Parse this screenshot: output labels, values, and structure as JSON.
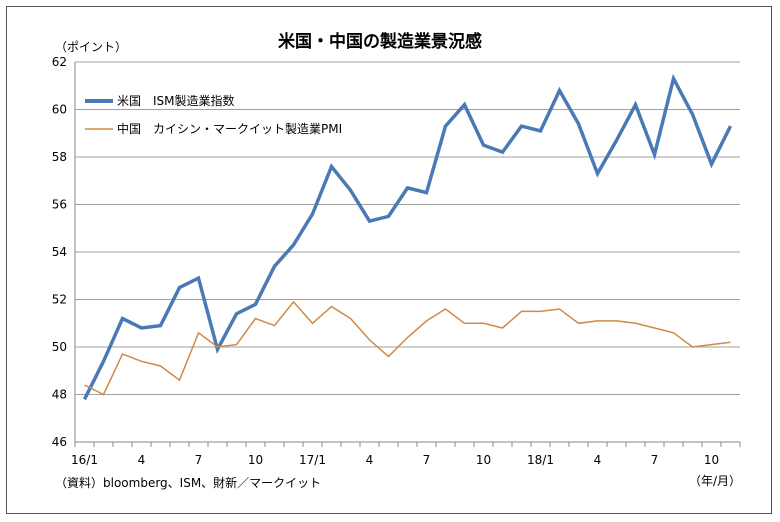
{
  "chart_data": {
    "type": "line",
    "title": "米国・中国の製造業景況感",
    "ylabel": "（ポイント）",
    "xlabel": "（年/月）",
    "source": "（資料）bloomberg、ISM、財新／マークイット",
    "ylim": [
      46,
      62
    ],
    "yticks": [
      46,
      48,
      50,
      52,
      54,
      56,
      58,
      60,
      62
    ],
    "x_tick_labels": [
      {
        "index": 0,
        "label": "16/1"
      },
      {
        "index": 3,
        "label": "4"
      },
      {
        "index": 6,
        "label": "7"
      },
      {
        "index": 9,
        "label": "10"
      },
      {
        "index": 12,
        "label": "17/1"
      },
      {
        "index": 15,
        "label": "4"
      },
      {
        "index": 18,
        "label": "7"
      },
      {
        "index": 21,
        "label": "10"
      },
      {
        "index": 24,
        "label": "18/1"
      },
      {
        "index": 27,
        "label": "4"
      },
      {
        "index": 30,
        "label": "7"
      },
      {
        "index": 33,
        "label": "10"
      }
    ],
    "x": [
      "16/1",
      "16/2",
      "16/3",
      "16/4",
      "16/5",
      "16/6",
      "16/7",
      "16/8",
      "16/9",
      "16/10",
      "16/11",
      "16/12",
      "17/1",
      "17/2",
      "17/3",
      "17/4",
      "17/5",
      "17/6",
      "17/7",
      "17/8",
      "17/9",
      "17/10",
      "17/11",
      "17/12",
      "18/1",
      "18/2",
      "18/3",
      "18/4",
      "18/5",
      "18/6",
      "18/7",
      "18/8",
      "18/9",
      "18/10",
      "18/11"
    ],
    "grid": true,
    "legend_position": "top-left",
    "series": [
      {
        "name": "米国　ISM製造業指数",
        "color": "#4a7ab5",
        "values": [
          47.8,
          49.4,
          51.2,
          50.8,
          50.9,
          52.5,
          52.9,
          49.9,
          51.4,
          51.8,
          53.4,
          54.3,
          55.6,
          57.6,
          56.6,
          55.3,
          55.5,
          56.7,
          56.5,
          59.3,
          60.2,
          58.5,
          58.2,
          59.3,
          59.1,
          60.8,
          59.4,
          57.3,
          58.7,
          60.2,
          58.1,
          61.3,
          59.8,
          57.7,
          59.3
        ]
      },
      {
        "name": "中国　カイシン・マークイット製造業PMI",
        "color": "#d08a45",
        "values": [
          48.4,
          48.0,
          49.7,
          49.4,
          49.2,
          48.6,
          50.6,
          50.0,
          50.1,
          51.2,
          50.9,
          51.9,
          51.0,
          51.7,
          51.2,
          50.3,
          49.6,
          50.4,
          51.1,
          51.6,
          51.0,
          51.0,
          50.8,
          51.5,
          51.5,
          51.6,
          51.0,
          51.1,
          51.1,
          51.0,
          50.8,
          50.6,
          50.0,
          50.1,
          50.2
        ]
      }
    ]
  }
}
